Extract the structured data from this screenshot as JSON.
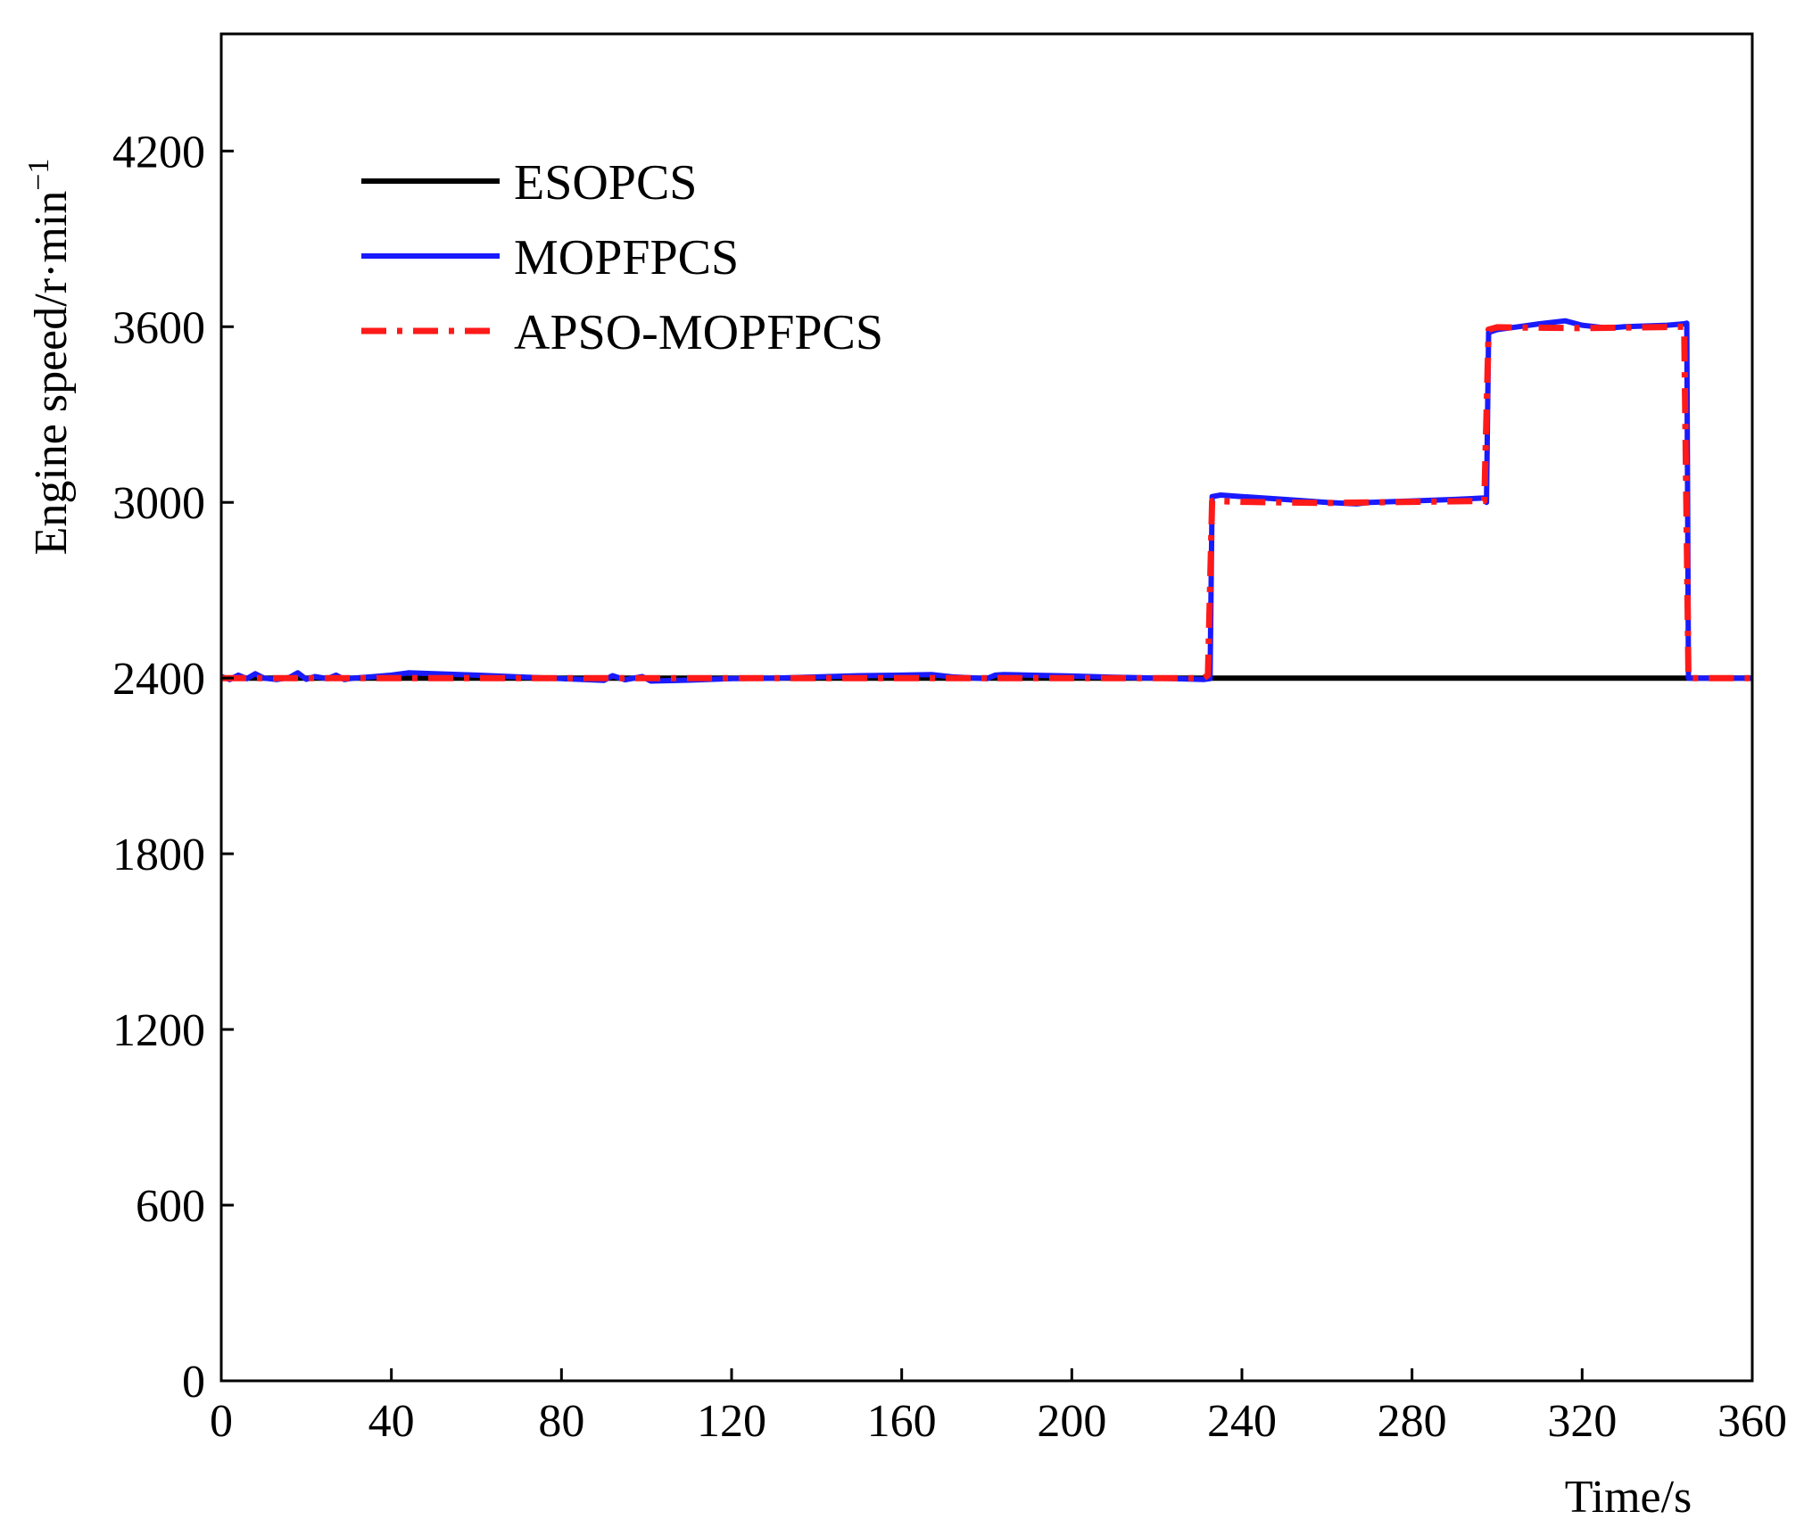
{
  "chart_data": {
    "type": "line",
    "title": "",
    "xlabel": "Time/s",
    "ylabel": {
      "text": "Engine speed/r·min",
      "superscript": "−1"
    },
    "xlim": [
      0,
      360
    ],
    "ylim": [
      0,
      4600
    ],
    "xticks": [
      0,
      40,
      80,
      120,
      160,
      200,
      240,
      280,
      320,
      360
    ],
    "yticks": [
      0,
      600,
      1200,
      1800,
      2400,
      3000,
      3600,
      4200
    ],
    "grid": false,
    "legend_position": "top-left",
    "series": [
      {
        "name": "ESOPCS",
        "color": "#000000",
        "style": "solid",
        "x": [
          0,
          360
        ],
        "y": [
          2400,
          2400
        ]
      },
      {
        "name": "MOPFPCS",
        "color": "#1a1aff",
        "style": "solid",
        "x": [
          0,
          2,
          4,
          6,
          8,
          10,
          13,
          16,
          18,
          20,
          22,
          25,
          27,
          29,
          31,
          35,
          40,
          44,
          50,
          60,
          70,
          80,
          90,
          92,
          95,
          99,
          101,
          110,
          120,
          130,
          140,
          150,
          160,
          167,
          172,
          180,
          182,
          184,
          190,
          200,
          210,
          220,
          231,
          232.5,
          233,
          235,
          240,
          250,
          260,
          267,
          270,
          280,
          290,
          297,
          297.5,
          298,
          300,
          305,
          310,
          316,
          320,
          326,
          330,
          340,
          344,
          344.6,
          345,
          350,
          360
        ],
        "y": [
          2405,
          2395,
          2410,
          2398,
          2415,
          2400,
          2395,
          2402,
          2418,
          2396,
          2405,
          2398,
          2410,
          2395,
          2400,
          2404,
          2410,
          2418,
          2415,
          2410,
          2404,
          2398,
          2392,
          2408,
          2394,
          2405,
          2390,
          2393,
          2398,
          2400,
          2404,
          2408,
          2410,
          2412,
          2404,
          2398,
          2410,
          2412,
          2410,
          2407,
          2403,
          2400,
          2395,
          2398,
          3020,
          3025,
          3020,
          3010,
          3000,
          2995,
          3000,
          3005,
          3010,
          3015,
          3000,
          3580,
          3590,
          3600,
          3610,
          3620,
          3605,
          3595,
          3600,
          3605,
          3610,
          3612,
          2400,
          2400,
          2400
        ]
      },
      {
        "name": "APSO-MOPFPCS",
        "color": "#ff1a1a",
        "style": "dashdot",
        "x": [
          0,
          40,
          80,
          120,
          160,
          200,
          231,
          232,
          233,
          240,
          260,
          280,
          297,
          298,
          300,
          320,
          344,
          345,
          350,
          360
        ],
        "y": [
          2400,
          2400,
          2400,
          2400,
          2400,
          2400,
          2400,
          2410,
          3005,
          3002,
          2998,
          3002,
          3005,
          3590,
          3598,
          3595,
          3600,
          2400,
          2400,
          2400
        ]
      }
    ]
  }
}
